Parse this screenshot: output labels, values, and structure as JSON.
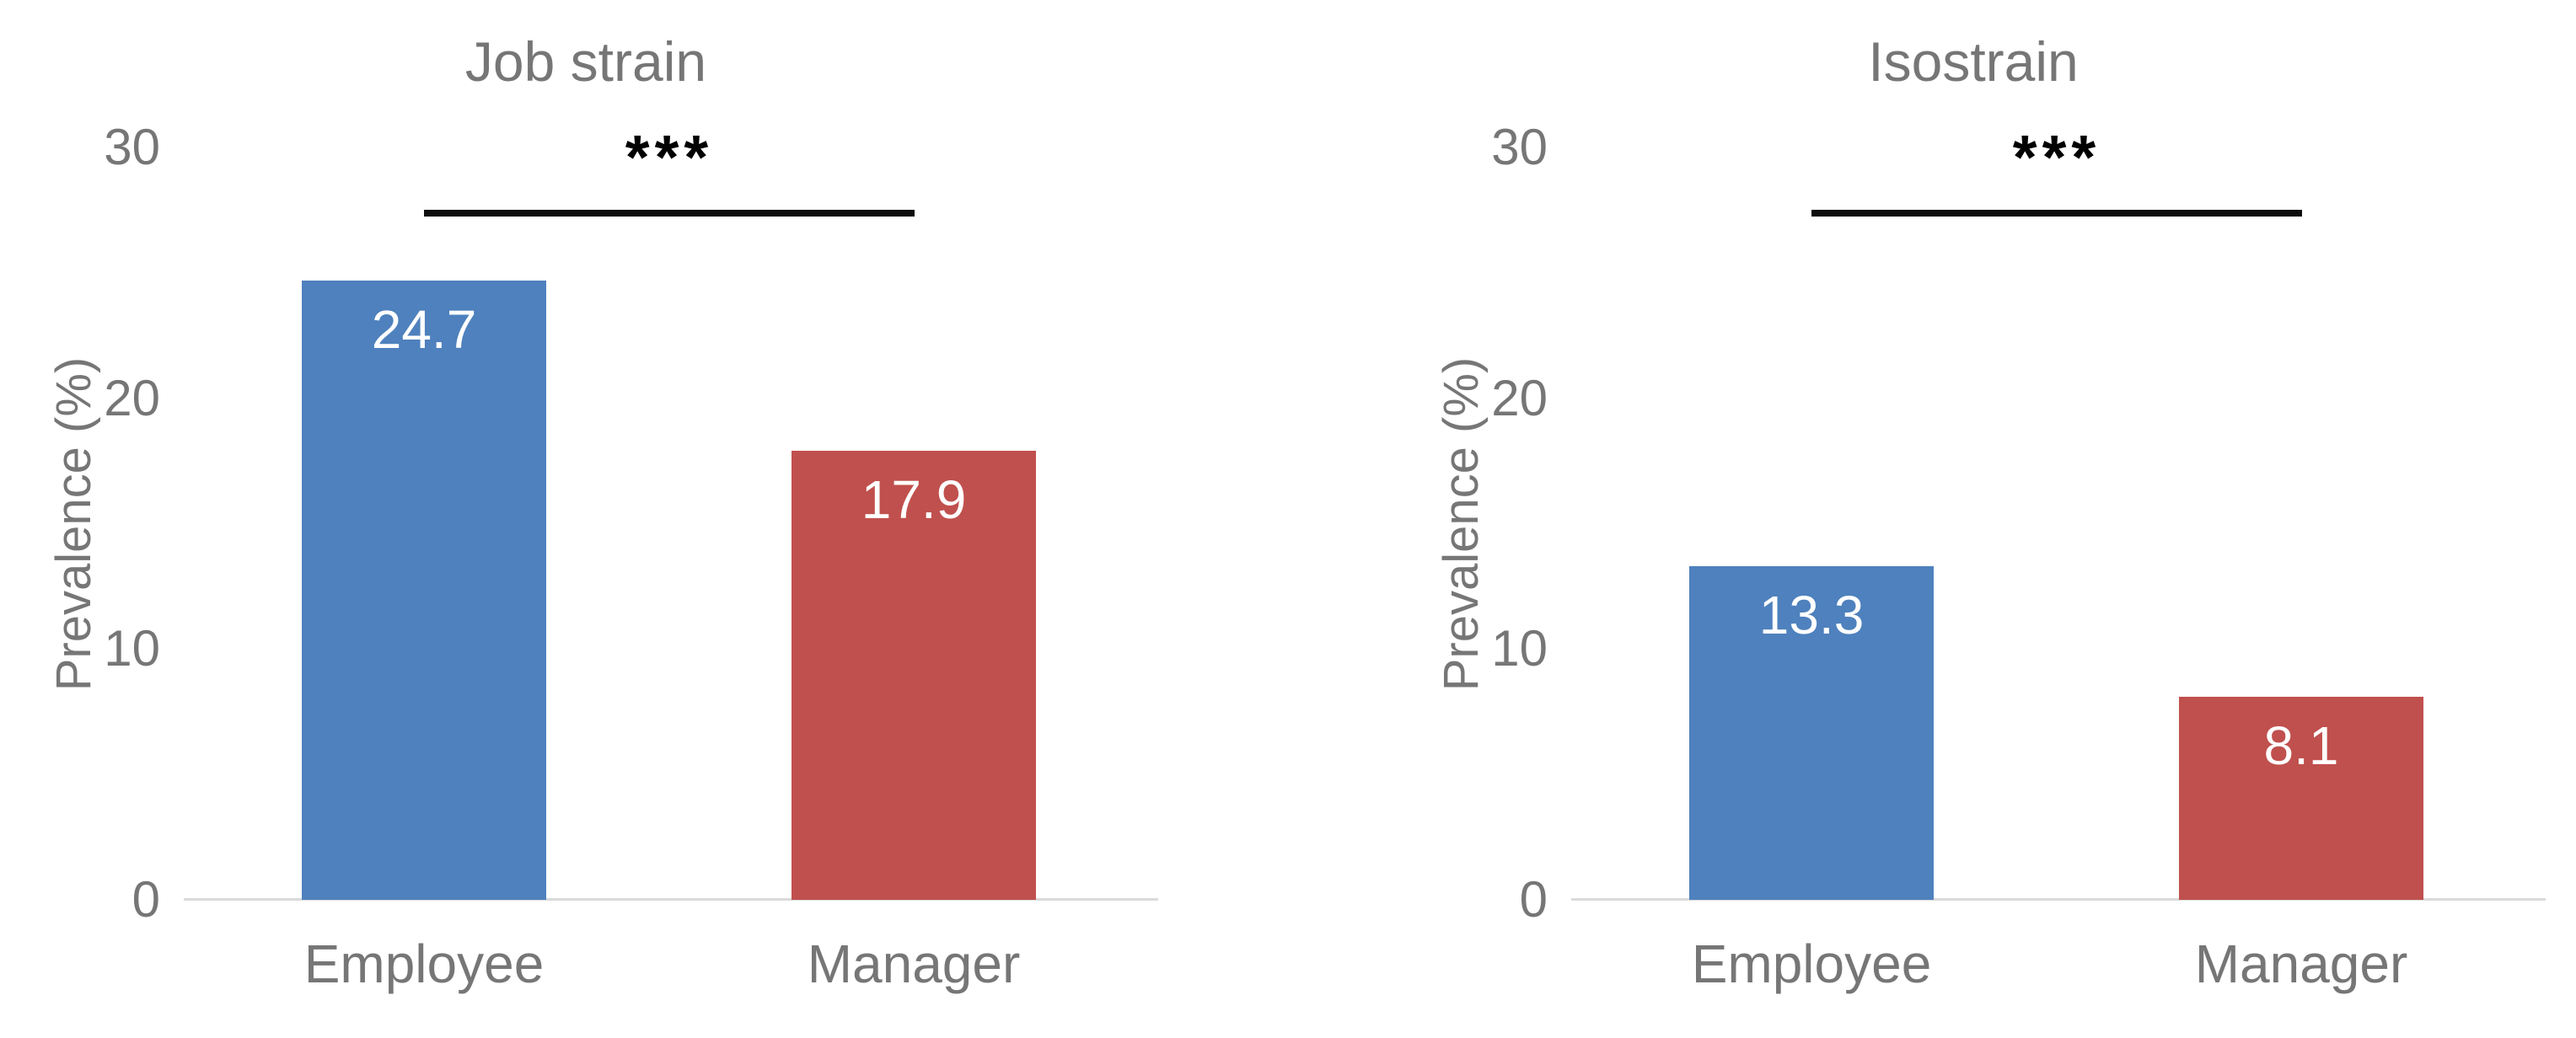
{
  "page": {
    "background": "#ffffff"
  },
  "colors": {
    "employee_bar": "#4E81BD",
    "manager_bar": "#C0504D",
    "text_gray": "#767676",
    "value_label_text": "#FFFFFF",
    "significance_marker": "#000000",
    "baseline_line": "#DADADA"
  },
  "chart_data": [
    {
      "type": "bar",
      "title": "Job strain",
      "xlabel": "",
      "ylabel": "Prevalence (%)",
      "categories": [
        "Employee",
        "Manager"
      ],
      "values": [
        24.7,
        17.9
      ],
      "values_text": [
        "24.7",
        "17.9"
      ],
      "ylim": [
        0,
        30
      ],
      "yticks": [
        30,
        20,
        10,
        0
      ],
      "ytick_labels": [
        "30",
        "20",
        "10",
        "0"
      ],
      "series_colors": [
        "#4E81BD",
        "#C0504D"
      ],
      "significance": "***",
      "significance_between": [
        "Employee",
        "Manager"
      ],
      "grid": "off",
      "legend_position": "none"
    },
    {
      "type": "bar",
      "title": "Isostrain",
      "xlabel": "",
      "ylabel": "Prevalence (%)",
      "categories": [
        "Employee",
        "Manager"
      ],
      "values": [
        13.3,
        8.1
      ],
      "values_text": [
        "13.3",
        "8.1"
      ],
      "ylim": [
        0,
        30
      ],
      "yticks": [
        30,
        20,
        10,
        0
      ],
      "ytick_labels": [
        "30",
        "20",
        "10",
        "0"
      ],
      "series_colors": [
        "#4E81BD",
        "#C0504D"
      ],
      "significance": "***",
      "significance_between": [
        "Employee",
        "Manager"
      ],
      "grid": "off",
      "legend_position": "none"
    }
  ]
}
